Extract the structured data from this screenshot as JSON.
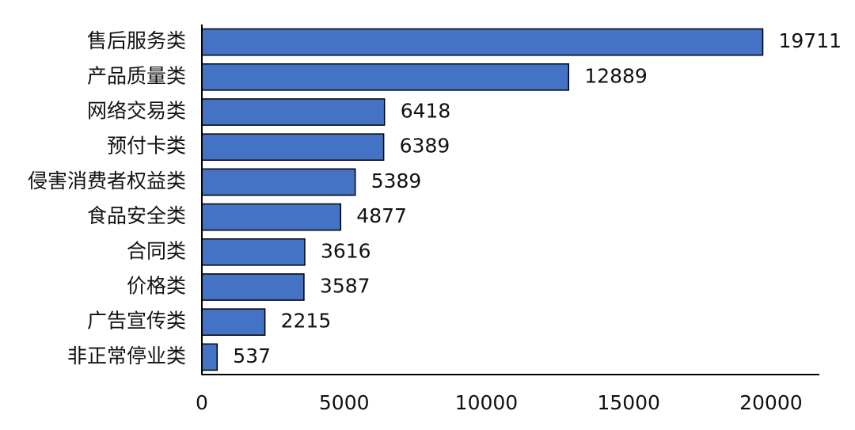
{
  "chart_data": {
    "type": "bar",
    "categories": [
      "售后服务类",
      "产品质量类",
      "网络交易类",
      "预付卡类",
      "侵害消费者权益类",
      "食品安全类",
      "合同类",
      "价格类",
      "广告宣传类",
      "非正常停业类"
    ],
    "values": [
      19711,
      12889,
      6418,
      6389,
      5389,
      4877,
      3616,
      3587,
      2215,
      537
    ],
    "color": "#4472c4",
    "xlim": [
      0,
      21700
    ],
    "xticks": [
      0,
      5000,
      10000,
      15000,
      20000
    ]
  }
}
